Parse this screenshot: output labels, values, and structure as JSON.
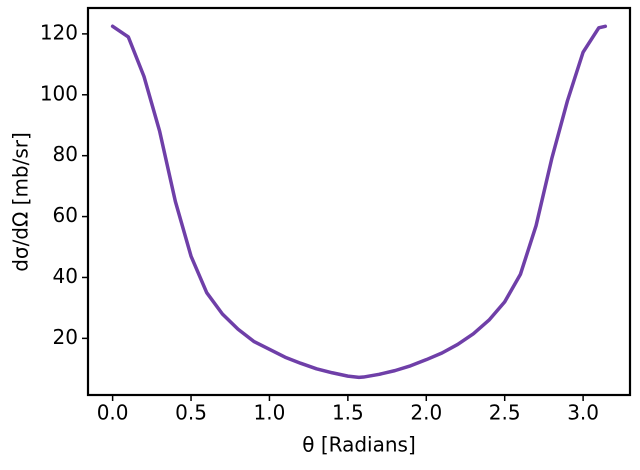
{
  "chart_data": {
    "type": "line",
    "xlabel": "θ [Radians]",
    "ylabel": "dσ/dΩ [mb/sr]",
    "x": [
      0,
      0.1,
      0.2,
      0.3,
      0.4,
      0.5,
      0.6,
      0.7,
      0.8,
      0.9,
      1.0,
      1.1,
      1.2,
      1.3,
      1.4,
      1.5,
      1.5708,
      1.6,
      1.7,
      1.8,
      1.9,
      2.0,
      2.1,
      2.2,
      2.3,
      2.4,
      2.5,
      2.6,
      2.7,
      2.8,
      2.9,
      3.0,
      3.1,
      3.1416
    ],
    "series": [
      {
        "name": "dσ/dΩ",
        "color": "#6f3fa8",
        "values": [
          122.5,
          119,
          106,
          88,
          65,
          47,
          35,
          28,
          23,
          19,
          16.4,
          13.8,
          11.8,
          10,
          8.7,
          7.6,
          7.2,
          7.3,
          8.2,
          9.4,
          11.0,
          13.0,
          15.2,
          18,
          21.5,
          26,
          32,
          41,
          57,
          79,
          98,
          114,
          122,
          122.5
        ]
      }
    ],
    "xlim": [
      -0.157,
      3.299
    ],
    "ylim": [
      1.4,
      128.5
    ],
    "xticks": [
      {
        "value": 0,
        "label": "0.0"
      },
      0.5,
      {
        "value": 1,
        "label": "1.0"
      },
      1.5,
      {
        "value": 2,
        "label": "2.0"
      },
      2.5,
      {
        "value": 3,
        "label": "3.0"
      }
    ],
    "yticks": [
      20,
      40,
      60,
      80,
      100,
      120
    ],
    "grid": false
  }
}
